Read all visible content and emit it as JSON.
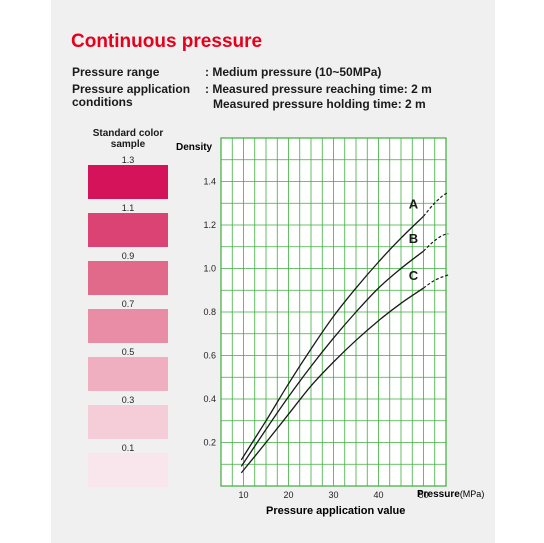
{
  "header": {
    "title": "Continuous pressure",
    "range_label": "Pressure range",
    "range_value": ": Medium pressure (10~50MPa)",
    "conditions_label_1": "Pressure application",
    "conditions_label_2": "conditions",
    "condition_1": ": Measured pressure reaching time: 2 m",
    "condition_2": "Measured pressure holding time: 2 m"
  },
  "color_sample": {
    "title_line1": "Standard color",
    "title_line2": "sample",
    "swatches": [
      {
        "label": "1.3",
        "color": "#d4135a"
      },
      {
        "label": "1.1",
        "color": "#da4373"
      },
      {
        "label": "0.9",
        "color": "#e16a8b"
      },
      {
        "label": "0.7",
        "color": "#e88da5"
      },
      {
        "label": "0.5",
        "color": "#efafc0"
      },
      {
        "label": "0.3",
        "color": "#f4cdd8"
      },
      {
        "label": "0.1",
        "color": "#f9e6ec"
      }
    ]
  },
  "chart_data": {
    "type": "line",
    "title": "",
    "ylabel": "Density",
    "xlabel_unit": "Pressure",
    "xlabel_unit_suffix": "(MPa)",
    "xlabel_main": "Pressure application value",
    "xlim": [
      5,
      55
    ],
    "ylim": [
      0,
      1.6
    ],
    "x_ticks": [
      "10",
      "20",
      "30",
      "40",
      "50"
    ],
    "y_ticks": [
      "0.2",
      "0.4",
      "0.6",
      "0.8",
      "1.0",
      "1.2",
      "1.4"
    ],
    "grid": true,
    "grid_color": "#3dae3d",
    "series": [
      {
        "name": "A",
        "x": [
          9.5,
          15,
          20,
          25,
          30,
          35,
          40,
          45,
          50
        ],
        "y": [
          0.12,
          0.3,
          0.47,
          0.63,
          0.78,
          0.91,
          1.03,
          1.14,
          1.24
        ],
        "dashed_x": [
          50,
          52,
          54,
          55.5
        ],
        "dashed_y": [
          1.24,
          1.29,
          1.33,
          1.35
        ]
      },
      {
        "name": "B",
        "x": [
          9.5,
          15,
          20,
          25,
          30,
          35,
          40,
          45,
          50
        ],
        "y": [
          0.09,
          0.26,
          0.41,
          0.55,
          0.68,
          0.8,
          0.91,
          1.0,
          1.08
        ],
        "dashed_x": [
          50,
          52,
          54,
          55.5
        ],
        "dashed_y": [
          1.08,
          1.12,
          1.15,
          1.16
        ]
      },
      {
        "name": "C",
        "x": [
          9.5,
          15,
          20,
          25,
          30,
          35,
          40,
          45,
          50
        ],
        "y": [
          0.06,
          0.2,
          0.33,
          0.46,
          0.57,
          0.67,
          0.76,
          0.84,
          0.91
        ],
        "dashed_x": [
          50,
          52,
          54,
          55.5
        ],
        "dashed_y": [
          0.91,
          0.94,
          0.96,
          0.97
        ]
      }
    ]
  }
}
